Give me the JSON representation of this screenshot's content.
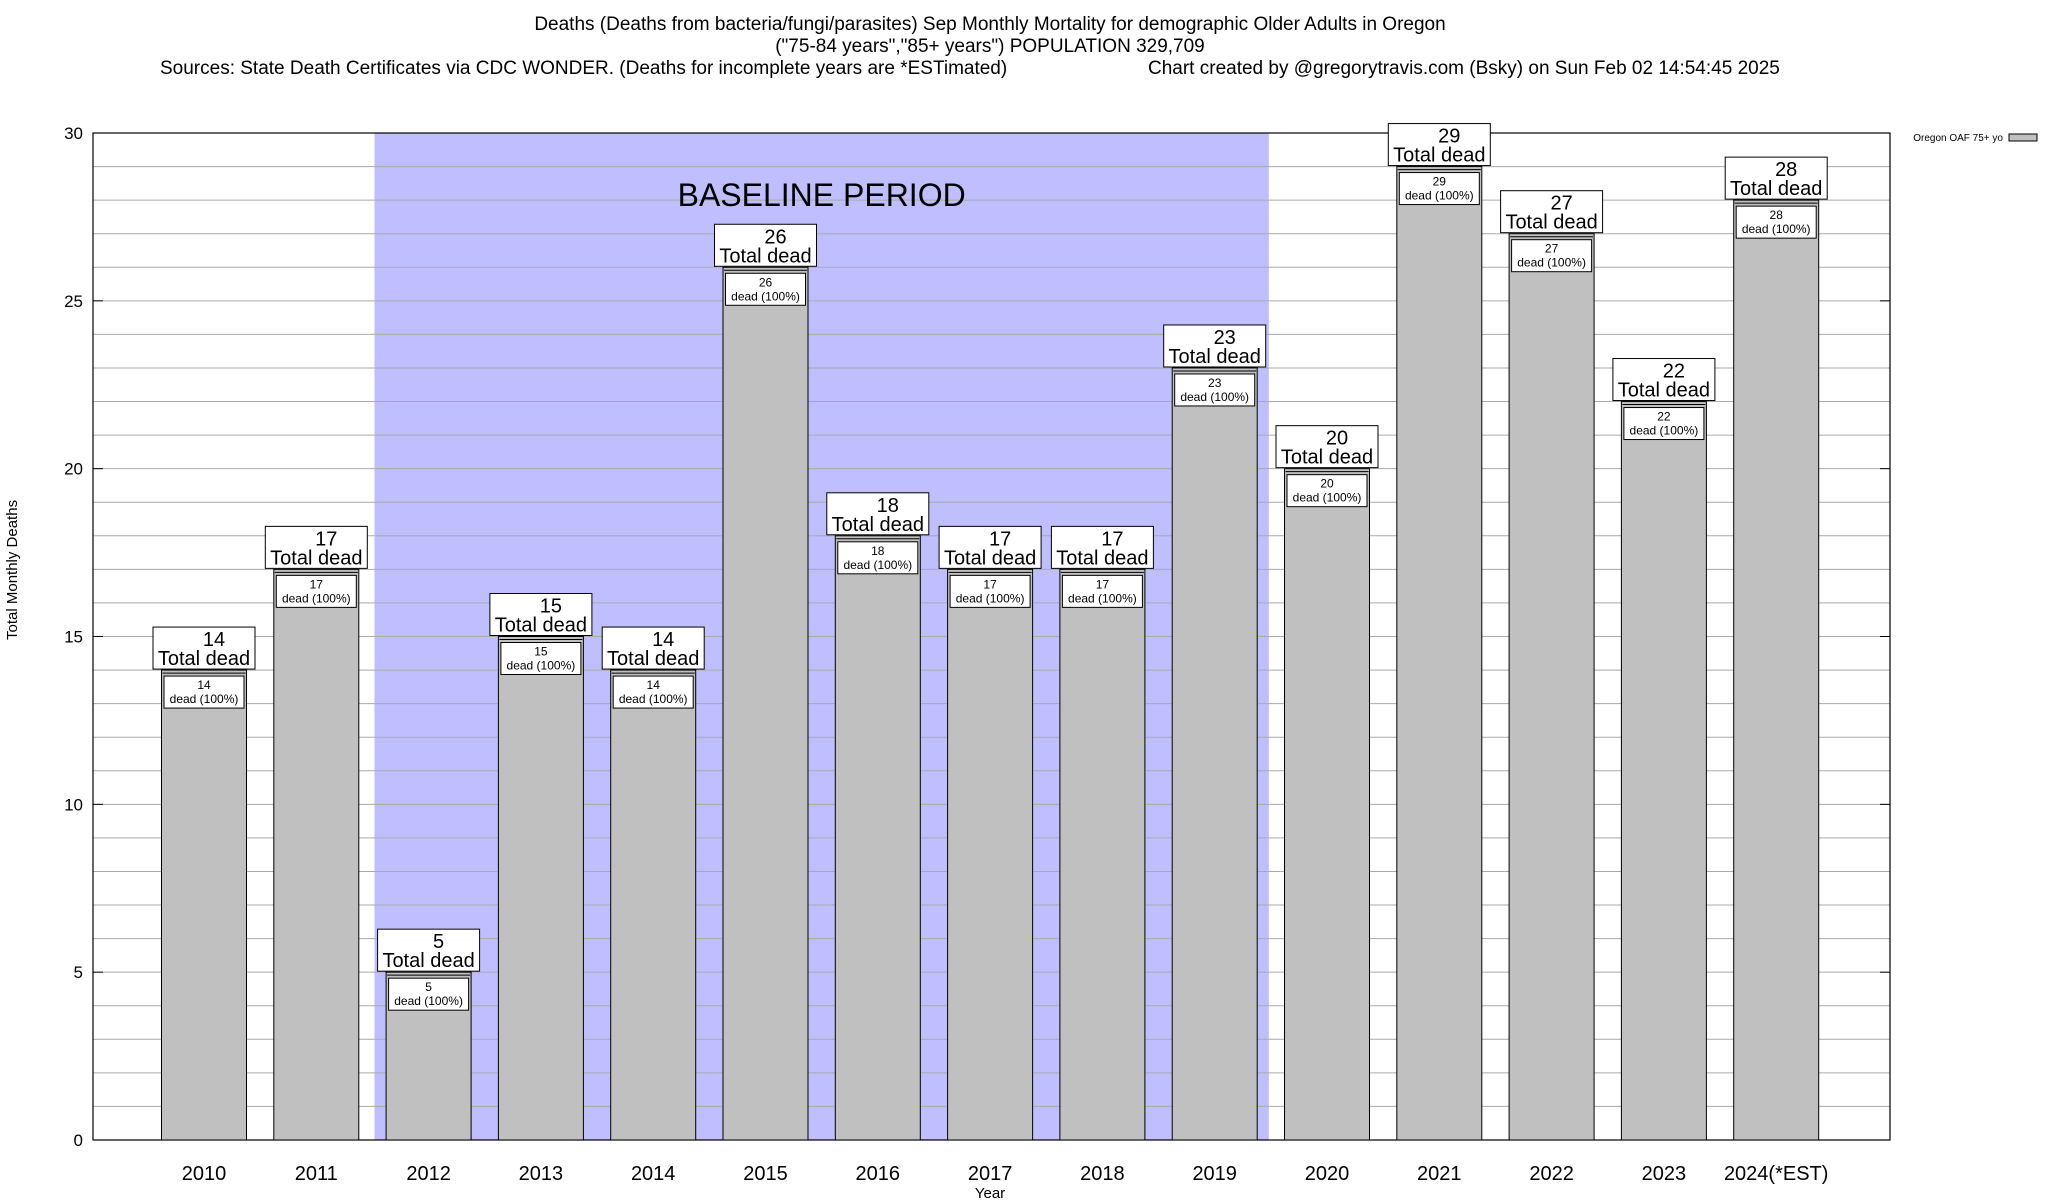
{
  "chart_data": {
    "type": "bar",
    "title": "Deaths (Deaths from bacteria/fungi/parasites) Sep Monthly Mortality for demographic Older Adults in Oregon",
    "subtitle": "(\"75-84 years\",\"85+ years\") POPULATION 329,709",
    "source": "Sources: State Death Certificates via CDC WONDER. (Deaths for incomplete years are *ESTimated)",
    "credit": "Chart created by @gregorytravis.com (Bsky) on Sun Feb 02 14:54:45 2025",
    "xlabel": "Year",
    "ylabel": "Total Monthly Deaths",
    "ylim": [
      0,
      30
    ],
    "yticks": [
      0,
      5,
      10,
      15,
      20,
      25,
      30
    ],
    "grid": true,
    "legend_position": "top-right",
    "baseline_label": "BASELINE PERIOD",
    "baseline_range": [
      "2012",
      "2019"
    ],
    "top_label_text": "Total dead",
    "inner_label_text": "dead (100%)",
    "categories": [
      "2010",
      "2011",
      "2012",
      "2013",
      "2014",
      "2015",
      "2016",
      "2017",
      "2018",
      "2019",
      "2020",
      "2021",
      "2022",
      "2023",
      "2024(*EST)"
    ],
    "series": [
      {
        "name": "Oregon OAF 75+ yo",
        "values": [
          14,
          17,
          5,
          15,
          14,
          26,
          18,
          17,
          17,
          23,
          20,
          29,
          27,
          22,
          28
        ]
      }
    ],
    "colors": {
      "bar": "#c0c0c0",
      "baseline_shade": "#bfbfff",
      "grid": "#aaaaaa"
    }
  }
}
